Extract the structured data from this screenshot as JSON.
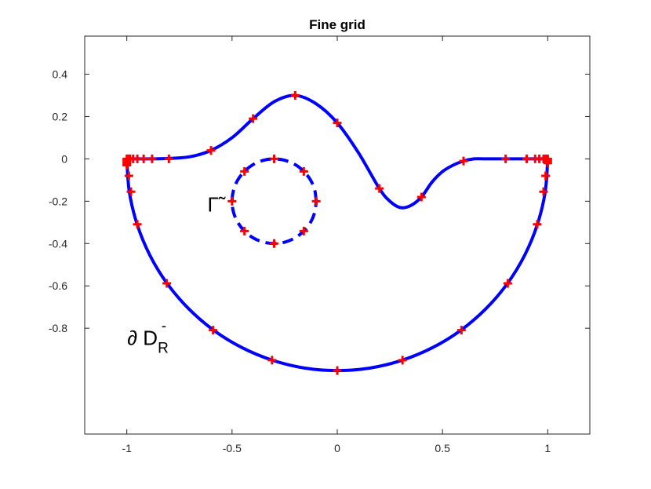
{
  "chart_data": {
    "type": "line",
    "title": "Fine grid",
    "xlabel": "",
    "ylabel": "",
    "xlim": [
      -1.2,
      1.2
    ],
    "ylim": [
      -1.3,
      0.58
    ],
    "x_ticks": [
      -1,
      -0.5,
      0,
      0.5,
      1
    ],
    "x_tick_labels": [
      "-1",
      "-0.5",
      "0",
      "0.5",
      "1"
    ],
    "y_ticks": [
      0.4,
      0.2,
      0,
      -0.2,
      -0.4,
      -0.6,
      -0.8
    ],
    "y_tick_labels": [
      "0.4",
      "0.2",
      "0",
      "-0.2",
      "-0.4",
      "-0.6",
      "-0.8"
    ],
    "grid": false,
    "colors": {
      "curve": "#0000ff",
      "markers": "#ff0000",
      "axes": "#262626"
    },
    "annotations": [
      {
        "text": "Γ̃",
        "x": -0.59,
        "y": -0.22
      },
      {
        "text": "∂ D",
        "sub": "R",
        "sup": "-",
        "x": -0.9,
        "y": -0.85
      }
    ],
    "series": [
      {
        "style": "solid",
        "x": [
          -1.0,
          -0.95,
          -0.9,
          -0.8,
          -0.7,
          -0.6,
          -0.5,
          -0.4,
          -0.3,
          -0.2,
          -0.1,
          0.0,
          0.1,
          0.2,
          0.25,
          0.3,
          0.35,
          0.4,
          0.45,
          0.5,
          0.55,
          0.6,
          0.65,
          0.7,
          0.8,
          0.9,
          0.95,
          1.0
        ],
        "y": [
          0.0,
          0.0,
          0.0,
          0.002,
          0.01,
          0.04,
          0.1,
          0.19,
          0.27,
          0.3,
          0.26,
          0.17,
          0.03,
          -0.14,
          -0.2,
          -0.23,
          -0.22,
          -0.18,
          -0.11,
          -0.06,
          -0.03,
          -0.01,
          0.0,
          0.0,
          0.0,
          0.0,
          0.0,
          0.0
        ]
      },
      {
        "style": "solid",
        "x": [
          1.0,
          0.988,
          0.951,
          0.891,
          0.809,
          0.707,
          0.588,
          0.454,
          0.309,
          0.156,
          0.0,
          -0.156,
          -0.309,
          -0.454,
          -0.588,
          -0.707,
          -0.809,
          -0.891,
          -0.951,
          -0.988,
          -1.0
        ],
        "y": [
          0.0,
          -0.156,
          -0.309,
          -0.454,
          -0.588,
          -0.707,
          -0.809,
          -0.891,
          -0.951,
          -0.988,
          -1.0,
          -0.988,
          -0.951,
          -0.891,
          -0.809,
          -0.707,
          -0.588,
          -0.454,
          -0.309,
          -0.156,
          0.0
        ]
      },
      {
        "style": "dashed",
        "x": [
          -0.1,
          -0.107,
          -0.127,
          -0.159,
          -0.2,
          -0.248,
          -0.3,
          -0.352,
          -0.4,
          -0.441,
          -0.473,
          -0.493,
          -0.5,
          -0.493,
          -0.473,
          -0.441,
          -0.4,
          -0.352,
          -0.3,
          -0.248,
          -0.2,
          -0.159,
          -0.127,
          -0.107,
          -0.1
        ],
        "y": [
          -0.2,
          -0.148,
          -0.1,
          -0.059,
          -0.027,
          -0.007,
          0.0,
          -0.007,
          -0.027,
          -0.059,
          -0.1,
          -0.148,
          -0.2,
          -0.252,
          -0.3,
          -0.341,
          -0.373,
          -0.393,
          -0.4,
          -0.393,
          -0.373,
          -0.341,
          -0.3,
          -0.252,
          -0.2
        ]
      }
    ],
    "markers": {
      "style": "plus",
      "x": [
        -1.0,
        -1.0,
        -1.0,
        -1.0,
        -0.99,
        -0.985,
        -0.97,
        -0.95,
        -0.92,
        -0.88,
        -0.8,
        -0.6,
        -0.4,
        -0.2,
        0.0,
        0.2,
        0.4,
        0.6,
        0.8,
        0.9,
        0.94,
        0.96,
        0.98,
        0.99,
        1.0,
        1.0,
        1.0,
        -0.99,
        -0.98,
        -0.95,
        -0.81,
        -0.59,
        -0.31,
        0.0,
        0.31,
        0.59,
        0.81,
        0.95,
        0.98,
        0.99,
        -0.1,
        -0.159,
        -0.3,
        -0.441,
        -0.5,
        -0.441,
        -0.3,
        -0.159
      ],
      "y": [
        0.0,
        -0.01,
        -0.02,
        -0.03,
        0.0,
        0.0,
        0.0,
        0.0,
        0.0,
        0.0,
        0.0,
        0.04,
        0.19,
        0.3,
        0.17,
        -0.14,
        -0.18,
        -0.01,
        0.0,
        0.0,
        0.0,
        0.0,
        0.0,
        0.0,
        0.0,
        -0.01,
        -0.02,
        -0.08,
        -0.155,
        -0.309,
        -0.588,
        -0.809,
        -0.951,
        -1.0,
        -0.951,
        -0.809,
        -0.588,
        -0.309,
        -0.155,
        -0.08,
        -0.2,
        -0.059,
        0.0,
        -0.059,
        -0.2,
        -0.341,
        -0.4,
        -0.341
      ]
    }
  }
}
